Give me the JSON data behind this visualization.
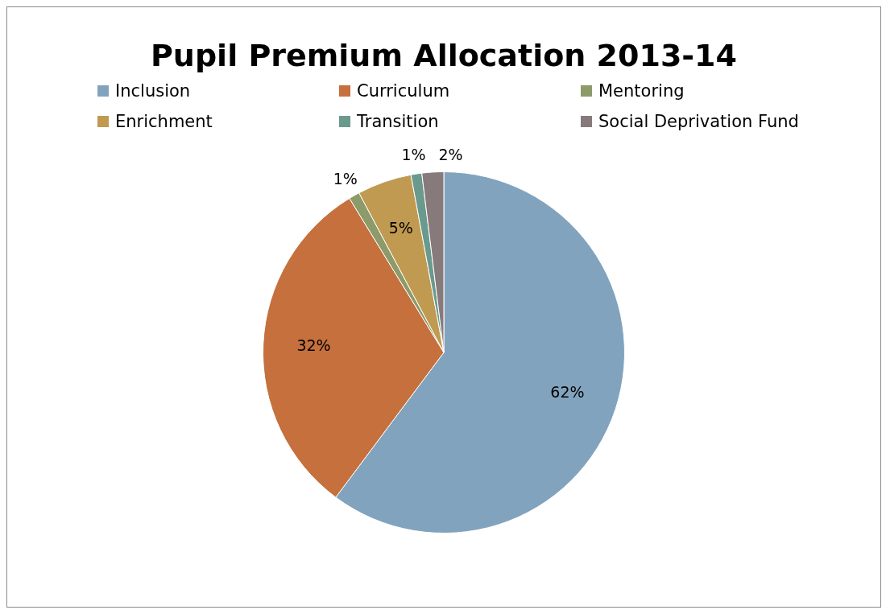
{
  "chart_data": {
    "type": "pie",
    "title": "Pupil Premium Allocation 2013-14",
    "categories": [
      "Inclusion",
      "Curriculum",
      "Mentoring",
      "Enrichment",
      "Transition",
      "Social Deprivation Fund"
    ],
    "values": [
      62,
      32,
      1,
      5,
      1,
      2
    ],
    "value_labels": [
      "62%",
      "32%",
      "1%",
      "5%",
      "1%",
      "2%"
    ],
    "colors": [
      "#82a3bd",
      "#c5703d",
      "#8d9a6a",
      "#c09a50",
      "#6a9a8d",
      "#877a7a"
    ],
    "legend": "top"
  }
}
